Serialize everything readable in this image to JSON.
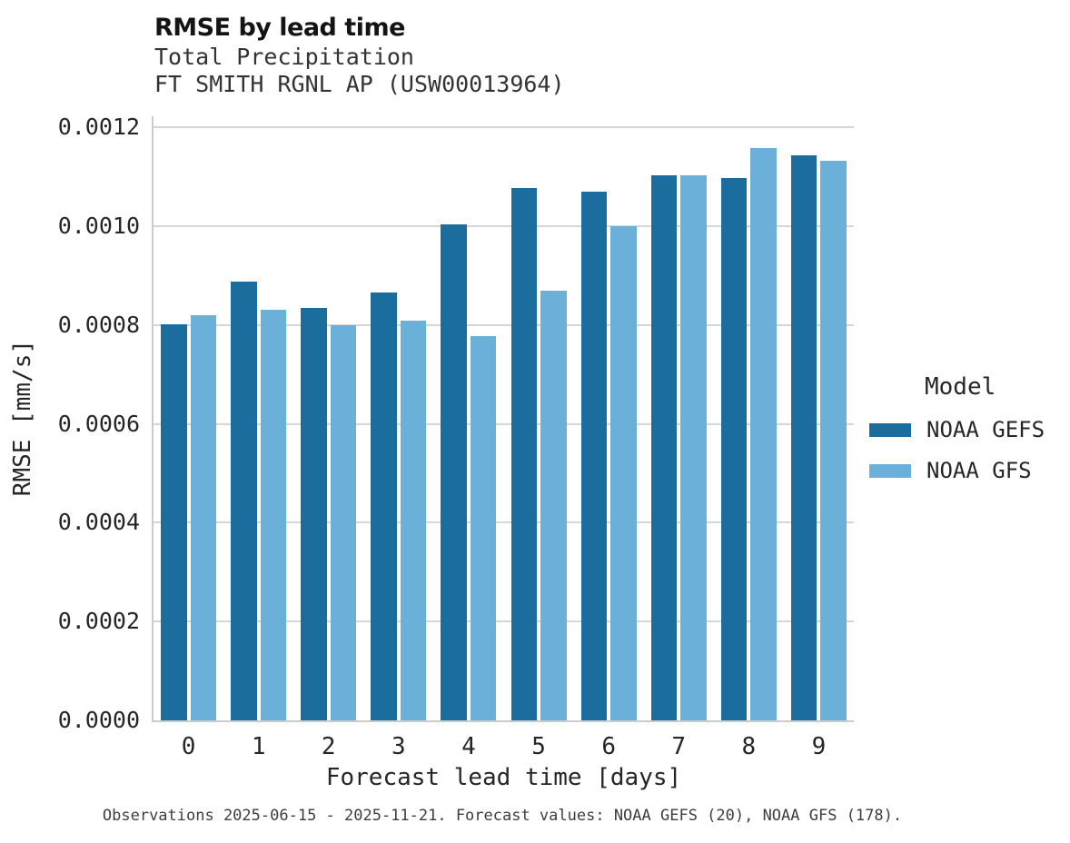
{
  "header": {
    "title": "RMSE by lead time",
    "subtitle_line1": "Total Precipitation",
    "subtitle_line2": "FT SMITH RGNL AP (USW00013964)"
  },
  "chart_data": {
    "type": "bar",
    "title": "RMSE by lead time",
    "subtitle": [
      "Total Precipitation",
      "FT SMITH RGNL AP (USW00013964)"
    ],
    "categories": [
      "0",
      "1",
      "2",
      "3",
      "4",
      "5",
      "6",
      "7",
      "8",
      "9"
    ],
    "series": [
      {
        "name": "NOAA GEFS",
        "color": "#1b6d9e",
        "values": [
          0.000802,
          0.000888,
          0.000834,
          0.000865,
          0.001003,
          0.001077,
          0.001069,
          0.001103,
          0.001097,
          0.001143
        ]
      },
      {
        "name": "NOAA GFS",
        "color": "#6ab0d8",
        "values": [
          0.00082,
          0.000831,
          0.000799,
          0.000809,
          0.000777,
          0.000869,
          0.001,
          0.001103,
          0.001158,
          0.001132
        ]
      }
    ],
    "xlabel": "Forecast lead time [days]",
    "ylabel": "RMSE [mm/s]",
    "ylim": [
      0,
      0.0012
    ],
    "yticks": [
      0.0,
      0.0002,
      0.0004,
      0.0006,
      0.0008,
      0.001,
      0.0012
    ],
    "ytick_labels": [
      "0.0000",
      "0.0002",
      "0.0004",
      "0.0006",
      "0.0008",
      "0.0010",
      "0.0012"
    ],
    "grid": "horizontal",
    "legend_position": "right"
  },
  "legend": {
    "title": "Model"
  },
  "footer": {
    "caption": "Observations 2025-06-15 - 2025-11-21. Forecast values: NOAA GEFS (20), NOAA GFS (178)."
  },
  "colors": {
    "gefs": "#1b6d9e",
    "gfs": "#6ab0d8",
    "gridline": "#d6d6d6",
    "spine": "#cccccc"
  }
}
